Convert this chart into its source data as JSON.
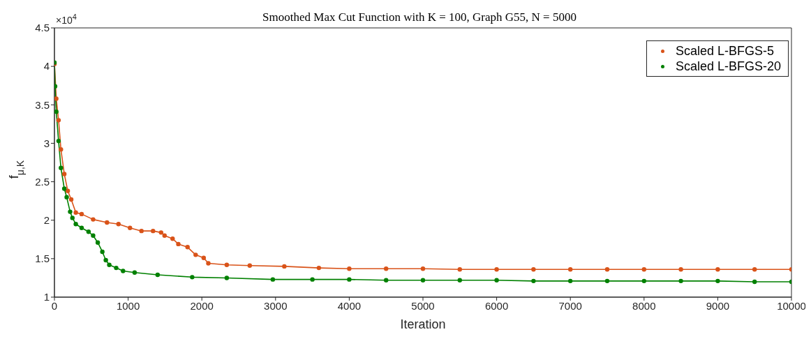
{
  "chart_data": {
    "type": "line",
    "title": "Smoothed Max Cut Function with K = 100, Graph G55, N = 5000",
    "xlabel": "Iteration",
    "ylabel": "f$_{μ,K}$",
    "annotations": [
      "×10$^{4}$"
    ],
    "xlim": [
      0,
      10000
    ],
    "xticks": [
      0,
      1000,
      2000,
      3000,
      4000,
      5000,
      6000,
      7000,
      8000,
      9000,
      10000
    ],
    "ylim": [
      1,
      4.5
    ],
    "yticks": [
      1,
      1.5,
      2,
      2.5,
      3,
      3.5,
      4,
      4.5
    ],
    "grid": false,
    "legend": "top right",
    "marker": "circle",
    "series": [
      {
        "name": "Scaled L-BFGS-5",
        "color": "#d95319",
        "x": [
          0,
          25,
          56,
          88,
          134,
          181,
          228,
          290,
          369,
          525,
          713,
          869,
          1025,
          1181,
          1338,
          1447,
          1494,
          1603,
          1681,
          1806,
          1916,
          2025,
          2088,
          2338,
          2650,
          3119,
          3588,
          4000,
          4500,
          5000,
          5500,
          6000,
          6500,
          7000,
          7500,
          8000,
          8500,
          9000,
          9500,
          10000
        ],
        "values": [
          4.03,
          3.58,
          3.3,
          2.92,
          2.6,
          2.38,
          2.27,
          2.1,
          2.08,
          2.01,
          1.97,
          1.95,
          1.9,
          1.86,
          1.86,
          1.84,
          1.8,
          1.76,
          1.69,
          1.65,
          1.55,
          1.51,
          1.44,
          1.42,
          1.41,
          1.4,
          1.38,
          1.37,
          1.37,
          1.37,
          1.36,
          1.36,
          1.36,
          1.36,
          1.36,
          1.36,
          1.36,
          1.36,
          1.36,
          1.36
        ]
      },
      {
        "name": "Scaled L-BFGS-20",
        "color": "#008000",
        "x": [
          0,
          9,
          25,
          56,
          88,
          134,
          166,
          213,
          244,
          290,
          369,
          463,
          525,
          588,
          650,
          697,
          744,
          838,
          931,
          1088,
          1400,
          1869,
          2338,
          2963,
          3500,
          4000,
          4500,
          5000,
          5500,
          6000,
          6500,
          7000,
          7500,
          8000,
          8500,
          9000,
          9500,
          10000
        ],
        "values": [
          4.05,
          3.74,
          3.41,
          3.03,
          2.68,
          2.41,
          2.3,
          2.11,
          2.03,
          1.95,
          1.9,
          1.85,
          1.8,
          1.71,
          1.59,
          1.48,
          1.42,
          1.38,
          1.34,
          1.32,
          1.29,
          1.26,
          1.25,
          1.23,
          1.23,
          1.23,
          1.22,
          1.22,
          1.22,
          1.22,
          1.21,
          1.21,
          1.21,
          1.21,
          1.21,
          1.21,
          1.2,
          1.2
        ]
      }
    ]
  }
}
